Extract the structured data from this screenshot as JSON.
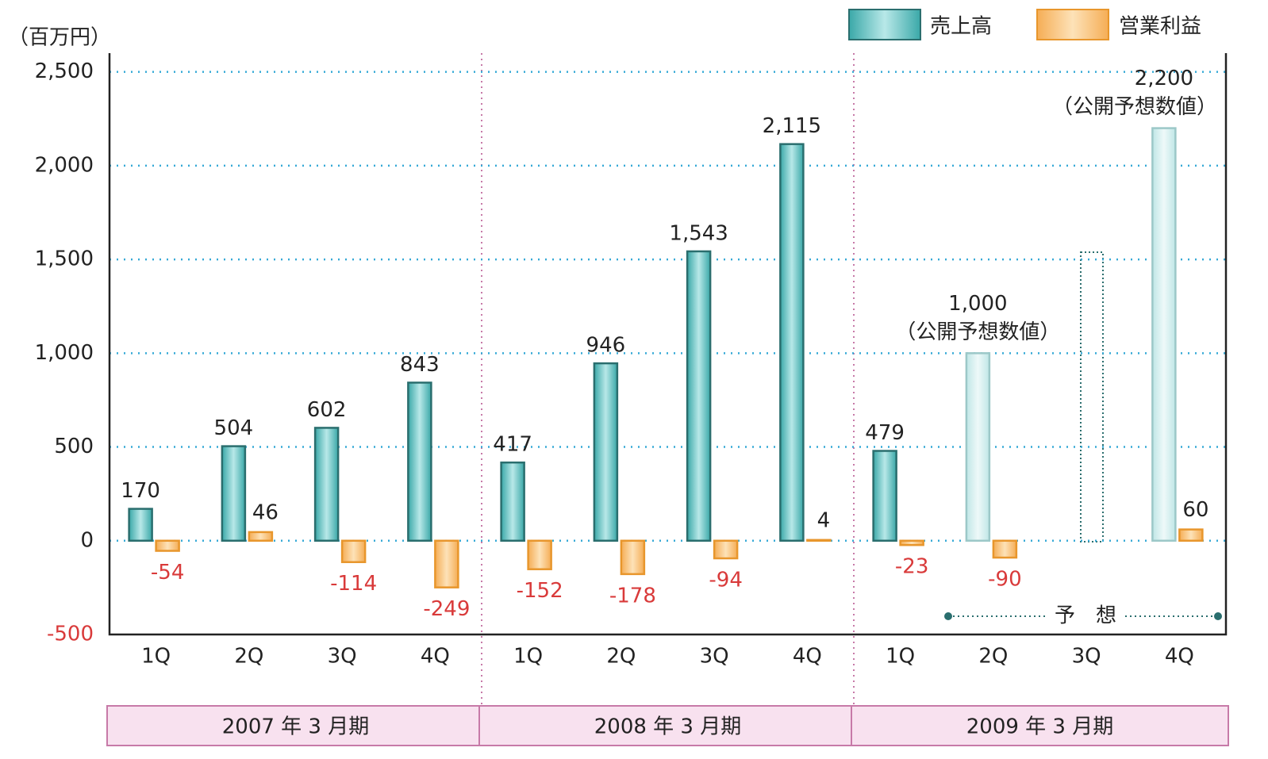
{
  "chart_data": {
    "type": "bar",
    "y_unit": "（百万円）",
    "categories": [
      "1Q",
      "2Q",
      "3Q",
      "4Q",
      "1Q",
      "2Q",
      "3Q",
      "4Q",
      "1Q",
      "2Q",
      "3Q",
      "4Q"
    ],
    "groups": [
      "2007 年 3 月期",
      "2008 年 3 月期",
      "2009 年 3 月期"
    ],
    "series": [
      {
        "name": "売上高",
        "color": "#5cc0c0",
        "values": [
          170,
          504,
          602,
          843,
          417,
          946,
          1543,
          2115,
          479,
          1000,
          null,
          2200
        ],
        "value_labels": [
          "170",
          "504",
          "602",
          "843",
          "417",
          "946",
          "1,543",
          "2,115",
          "479",
          "1,000",
          null,
          "2,200"
        ]
      },
      {
        "name": "営業利益",
        "color": "#f8c27a",
        "values": [
          -54,
          46,
          -114,
          -249,
          -152,
          -178,
          -94,
          4,
          -23,
          -90,
          null,
          60
        ]
      }
    ],
    "forecast": [
      false,
      false,
      false,
      false,
      false,
      false,
      false,
      false,
      false,
      true,
      true,
      true
    ],
    "forecast_note": "（公開予想数値）",
    "forecast_label": "予　想",
    "ylim": [
      -500,
      2600
    ],
    "yticks": [
      -500,
      0,
      500,
      {
        "value": 1000,
        "label": "1,000"
      },
      {
        "value": 1500,
        "label": "1,500"
      },
      {
        "value": 2000,
        "label": "2,000"
      },
      {
        "value": 2500,
        "label": "2,500"
      }
    ],
    "grid": true,
    "legend": "top-right"
  }
}
